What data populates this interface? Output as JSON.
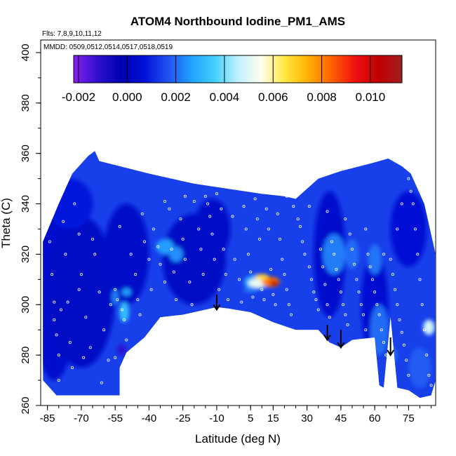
{
  "chart_data": {
    "type": "heatmap",
    "title": "ATOM4 Northbound Iodine_PM1_AMS",
    "flights_label": "Flts: 7,8,9,10,11,12",
    "dates_label": "MMDD: 0509,0512,0514,0517,0518,0519",
    "xlabel": "Latitude (deg N)",
    "ylabel": "Theta (C)",
    "xlim": [
      -88,
      87
    ],
    "ylim": [
      260,
      405
    ],
    "x_ticks": [
      -85,
      -70,
      -55,
      -40,
      -25,
      -10,
      5,
      15,
      30,
      45,
      60,
      75
    ],
    "y_ticks": [
      260,
      280,
      300,
      320,
      340,
      360,
      380,
      400
    ],
    "colorbar": {
      "ticks": [
        "-0.002",
        "0.000",
        "0.002",
        "0.004",
        "0.006",
        "0.008",
        "0.010"
      ],
      "range": [
        -0.0022,
        0.0113
      ],
      "colors": [
        "#8a20f0",
        "#3010d0",
        "#0000b0",
        "#0010d8",
        "#2050f0",
        "#20a0ff",
        "#40d0ff",
        "#c0f0ff",
        "#fffff0",
        "#ffe840",
        "#ffb000",
        "#ff6000",
        "#ee1010",
        "#c00000",
        "#a02020"
      ]
    },
    "envelope": {
      "top": [
        [
          -87,
          325
        ],
        [
          -80,
          340
        ],
        [
          -74,
          352
        ],
        [
          -67,
          359
        ],
        [
          -64,
          361
        ],
        [
          -62,
          357
        ],
        [
          -40,
          352
        ],
        [
          -20,
          348
        ],
        [
          -5,
          346
        ],
        [
          10,
          344
        ],
        [
          20,
          343
        ],
        [
          25,
          342
        ],
        [
          35,
          350
        ],
        [
          45,
          353
        ],
        [
          58,
          356
        ],
        [
          66,
          358
        ],
        [
          72,
          355
        ],
        [
          76,
          352
        ],
        [
          82,
          340
        ],
        [
          85,
          328
        ],
        [
          87,
          320
        ]
      ],
      "bottom": [
        [
          87,
          270
        ],
        [
          85,
          264
        ],
        [
          80,
          263
        ],
        [
          75,
          266
        ],
        [
          70,
          267
        ],
        [
          67,
          295
        ],
        [
          64,
          267
        ],
        [
          62,
          268
        ],
        [
          60,
          287
        ],
        [
          50,
          286
        ],
        [
          45,
          283
        ],
        [
          40,
          285
        ],
        [
          35,
          290
        ],
        [
          25,
          290
        ],
        [
          15,
          293
        ],
        [
          5,
          297
        ],
        [
          -5,
          298.5
        ],
        [
          -10,
          299
        ],
        [
          -25,
          296
        ],
        [
          -35,
          295
        ],
        [
          -42,
          287
        ],
        [
          -50,
          281
        ],
        [
          -53,
          275
        ],
        [
          -53,
          264
        ],
        [
          -81,
          264
        ],
        [
          -87,
          270
        ]
      ]
    },
    "background_value": 0.0014,
    "patches": [
      {
        "x": -82,
        "y": 305,
        "rx": 10,
        "ry": 35,
        "value": 0.0004
      },
      {
        "x": -70,
        "y": 305,
        "rx": 15,
        "ry": 30,
        "value": 0.0002
      },
      {
        "x": -50,
        "y": 320,
        "rx": 10,
        "ry": 20,
        "value": 0.0003
      },
      {
        "x": -20,
        "y": 318,
        "rx": 14,
        "ry": 18,
        "value": 0.0002
      },
      {
        "x": -12,
        "y": 330,
        "rx": 8,
        "ry": 12,
        "value": 0.0003
      },
      {
        "x": 40,
        "y": 320,
        "rx": 7,
        "ry": 25,
        "value": 0.0004
      },
      {
        "x": 60,
        "y": 300,
        "rx": 6,
        "ry": 20,
        "value": 0.0005
      },
      {
        "x": 75,
        "y": 330,
        "rx": 8,
        "ry": 15,
        "value": 0.0006
      },
      {
        "x": -75,
        "y": 340,
        "rx": 10,
        "ry": 10,
        "value": 0.0008
      },
      {
        "x": -33,
        "y": 323,
        "rx": 4,
        "ry": 3,
        "value": 0.0026
      },
      {
        "x": -28,
        "y": 320,
        "rx": 3,
        "ry": 3,
        "value": 0.0024
      },
      {
        "x": -51,
        "y": 297,
        "rx": 2.2,
        "ry": 4,
        "value": 0.0032
      },
      {
        "x": -50,
        "y": 305,
        "rx": 2,
        "ry": 1.5,
        "value": 0.0026
      },
      {
        "x": -55,
        "y": 303,
        "rx": 1.5,
        "ry": 3,
        "value": 0.0022
      },
      {
        "x": 8,
        "y": 309,
        "rx": 6,
        "ry": 3,
        "value": 0.0028
      },
      {
        "x": 8,
        "y": 308.5,
        "rx": 4,
        "ry": 1.8,
        "value": 0.0052
      },
      {
        "x": 14,
        "y": 309,
        "rx": 4,
        "ry": 2,
        "value": 0.0082
      },
      {
        "x": 15.5,
        "y": 308.5,
        "rx": 2,
        "ry": 1,
        "value": 0.0105
      },
      {
        "x": 10,
        "y": 311,
        "rx": 3,
        "ry": 1.2,
        "value": 0.0068
      },
      {
        "x": 5,
        "y": 306,
        "rx": 3,
        "ry": 1.2,
        "value": 0.0022
      },
      {
        "x": 42,
        "y": 320,
        "rx": 5,
        "ry": 8,
        "value": 0.0022
      },
      {
        "x": 50,
        "y": 320,
        "rx": 3,
        "ry": 6,
        "value": 0.002
      },
      {
        "x": 60,
        "y": 318,
        "rx": 3,
        "ry": 6,
        "value": 0.0021
      },
      {
        "x": 62,
        "y": 290,
        "rx": 4,
        "ry": 10,
        "value": 0.002
      },
      {
        "x": 84,
        "y": 291,
        "rx": 2.5,
        "ry": 3,
        "value": 0.0048
      },
      {
        "x": 80,
        "y": 275,
        "rx": 5,
        "ry": 8,
        "value": 0.0018
      },
      {
        "x": -52,
        "y": 282,
        "rx": 2,
        "ry": 2,
        "value": -0.0012
      },
      {
        "x": 68,
        "y": 280,
        "rx": 2,
        "ry": 3,
        "value": 0.002
      }
    ],
    "arrows": [
      {
        "x": -10,
        "y_top": 304,
        "y_bottom": 298
      },
      {
        "x": 39,
        "y_top": 292,
        "y_bottom": 286
      },
      {
        "x": 45,
        "y_top": 290,
        "y_bottom": 283
      },
      {
        "x": 67,
        "y_top": 287,
        "y_bottom": 280
      }
    ],
    "observation_points": [
      [
        -84,
        325
      ],
      [
        -83,
        312
      ],
      [
        -82,
        301
      ],
      [
        -82,
        294
      ],
      [
        -81,
        288
      ],
      [
        -80,
        280
      ],
      [
        -80,
        270
      ],
      [
        -78,
        333
      ],
      [
        -77,
        320
      ],
      [
        -76,
        301
      ],
      [
        -75,
        285
      ],
      [
        -74,
        275
      ],
      [
        -73,
        340
      ],
      [
        -71,
        328
      ],
      [
        -70,
        312
      ],
      [
        -68,
        295
      ],
      [
        -66,
        283
      ],
      [
        -64,
        320
      ],
      [
        -62,
        305
      ],
      [
        -60,
        290
      ],
      [
        -58,
        278
      ],
      [
        -57,
        300
      ],
      [
        -55,
        306
      ],
      [
        -54,
        302
      ],
      [
        -52,
        298
      ],
      [
        -51,
        294
      ],
      [
        -50,
        286
      ],
      [
        -48,
        320
      ],
      [
        -46,
        312
      ],
      [
        -45,
        302
      ],
      [
        -44,
        296
      ],
      [
        -42,
        325
      ],
      [
        -40,
        318
      ],
      [
        -39,
        306
      ],
      [
        -38,
        330
      ],
      [
        -36,
        323
      ],
      [
        -35,
        316
      ],
      [
        -33,
        309
      ],
      [
        -31,
        338
      ],
      [
        -30,
        322
      ],
      [
        -29,
        313
      ],
      [
        -28,
        302
      ],
      [
        -26,
        334
      ],
      [
        -25,
        326
      ],
      [
        -24,
        318
      ],
      [
        -22,
        309
      ],
      [
        -21,
        300
      ],
      [
        -20,
        341
      ],
      [
        -18,
        330
      ],
      [
        -17,
        322
      ],
      [
        -16,
        312
      ],
      [
        -15,
        343
      ],
      [
        -14,
        340
      ],
      [
        -13,
        335
      ],
      [
        -12,
        328
      ],
      [
        -11,
        318
      ],
      [
        -10,
        344
      ],
      [
        -9,
        306
      ],
      [
        -8,
        338
      ],
      [
        -7,
        322
      ],
      [
        -6,
        312
      ],
      [
        -5,
        302
      ],
      [
        -3,
        335
      ],
      [
        -2,
        318
      ],
      [
        0,
        310
      ],
      [
        1,
        301
      ],
      [
        2,
        339
      ],
      [
        3,
        330
      ],
      [
        4,
        320
      ],
      [
        5,
        313
      ],
      [
        6,
        303
      ],
      [
        7,
        342
      ],
      [
        8,
        334
      ],
      [
        9,
        326
      ],
      [
        10,
        306
      ],
      [
        11,
        302
      ],
      [
        12,
        338
      ],
      [
        13,
        330
      ],
      [
        14,
        314
      ],
      [
        15,
        304
      ],
      [
        16,
        300
      ],
      [
        17,
        336
      ],
      [
        18,
        326
      ],
      [
        19,
        318
      ],
      [
        20,
        312
      ],
      [
        21,
        306
      ],
      [
        22,
        300
      ],
      [
        23,
        296
      ],
      [
        24,
        339
      ],
      [
        26,
        334
      ],
      [
        27,
        331
      ],
      [
        28,
        325
      ],
      [
        29,
        320
      ],
      [
        31,
        315
      ],
      [
        32,
        310
      ],
      [
        33,
        305
      ],
      [
        34,
        302
      ],
      [
        35,
        298
      ],
      [
        36,
        322
      ],
      [
        37,
        315
      ],
      [
        38,
        308
      ],
      [
        39,
        300
      ],
      [
        40,
        295
      ],
      [
        41,
        325
      ],
      [
        42,
        320
      ],
      [
        43,
        314
      ],
      [
        44,
        310
      ],
      [
        45,
        305
      ],
      [
        46,
        300
      ],
      [
        47,
        296
      ],
      [
        48,
        292
      ],
      [
        49,
        328
      ],
      [
        50,
        322
      ],
      [
        51,
        316
      ],
      [
        52,
        310
      ],
      [
        53,
        305
      ],
      [
        54,
        300
      ],
      [
        55,
        296
      ],
      [
        56,
        290
      ],
      [
        57,
        320
      ],
      [
        58,
        315
      ],
      [
        59,
        310
      ],
      [
        60,
        305
      ],
      [
        61,
        300
      ],
      [
        62,
        296
      ],
      [
        63,
        290
      ],
      [
        64,
        285
      ],
      [
        65,
        280
      ],
      [
        66,
        275
      ],
      [
        67,
        318
      ],
      [
        68,
        312
      ],
      [
        69,
        306
      ],
      [
        70,
        300
      ],
      [
        71,
        294
      ],
      [
        72,
        289
      ],
      [
        73,
        284
      ],
      [
        74,
        278
      ],
      [
        75,
        272
      ],
      [
        76,
        345
      ],
      [
        77,
        340
      ],
      [
        78,
        330
      ],
      [
        79,
        320
      ],
      [
        80,
        310
      ],
      [
        81,
        300
      ],
      [
        82,
        290
      ],
      [
        83,
        280
      ],
      [
        84,
        272
      ],
      [
        85,
        268
      ],
      [
        75,
        350
      ],
      [
        77,
        352
      ],
      [
        72,
        340
      ],
      [
        70,
        330
      ],
      [
        64,
        320
      ],
      [
        56,
        330
      ],
      [
        47,
        334
      ],
      [
        39,
        337
      ],
      [
        31,
        339
      ],
      [
        21,
        343
      ],
      [
        -24,
        343
      ],
      [
        -33,
        341
      ],
      [
        -43,
        336
      ],
      [
        -53,
        331
      ],
      [
        -65,
        326
      ],
      [
        -71,
        306
      ],
      [
        -79,
        298
      ],
      [
        -69,
        279
      ],
      [
        -61,
        269
      ],
      [
        -55,
        279
      ]
    ]
  }
}
